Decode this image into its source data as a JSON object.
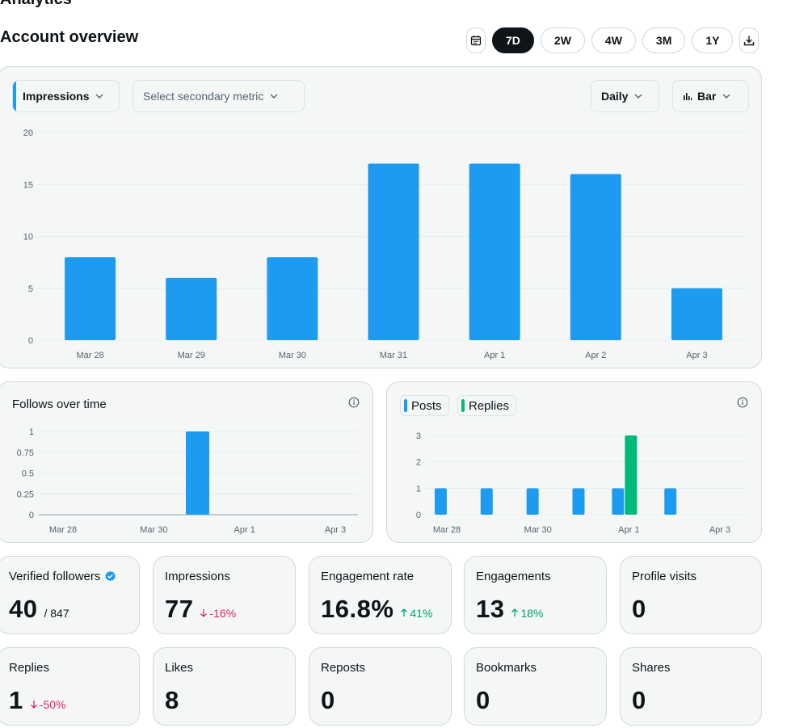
{
  "page": {
    "heading": "Analytics",
    "title": "Account overview"
  },
  "ranges": [
    {
      "label": "7D",
      "active": true
    },
    {
      "label": "2W",
      "active": false
    },
    {
      "label": "4W",
      "active": false
    },
    {
      "label": "3M",
      "active": false
    },
    {
      "label": "1Y",
      "active": false
    }
  ],
  "icons": {
    "calendar": "calendar-icon",
    "download": "download-icon",
    "chevron": "chevron-down-icon",
    "bar": "bar-chart-icon",
    "info": "info-icon",
    "verified": "verified-badge-icon"
  },
  "colors": {
    "blue": "#1d9bf0",
    "green": "#00ba7c",
    "down": "#e0245e",
    "up": "#00a36c"
  },
  "controls": {
    "primary_metric": "Impressions",
    "secondary_metric_placeholder": "Select secondary metric",
    "interval": "Daily",
    "chart_type": "Bar"
  },
  "chart_data": [
    {
      "type": "bar",
      "title": "Impressions",
      "categories": [
        "Mar 28",
        "Mar 29",
        "Mar 30",
        "Mar 31",
        "Apr 1",
        "Apr 2",
        "Apr 3"
      ],
      "values": [
        8,
        6,
        8,
        17,
        17,
        16,
        5
      ],
      "ylim": [
        0,
        20
      ],
      "yticks": [
        "0",
        "5",
        "10",
        "15",
        "20"
      ],
      "grid": true
    },
    {
      "type": "bar",
      "title": "Follows over time",
      "categories": [
        "Mar 28",
        "Mar 29",
        "Mar 30",
        "Mar 31",
        "Apr 1",
        "Apr 2",
        "Apr 3"
      ],
      "xticks": [
        "Mar 28",
        "Mar 30",
        "Apr 1",
        "Apr 3"
      ],
      "values": [
        0,
        0,
        0,
        1,
        0,
        0,
        0
      ],
      "ylim": [
        0,
        1
      ],
      "yticks": [
        "0",
        "0.25",
        "0.5",
        "0.75",
        "1"
      ],
      "grid": true
    },
    {
      "type": "bar",
      "legend": [
        "Posts",
        "Replies"
      ],
      "categories": [
        "Mar 28",
        "Mar 29",
        "Mar 30",
        "Mar 31",
        "Apr 1",
        "Apr 2",
        "Apr 3"
      ],
      "xticks": [
        "Mar 28",
        "Mar 30",
        "Apr 1",
        "Apr 3"
      ],
      "series": [
        {
          "name": "Posts",
          "values": [
            1,
            1,
            1,
            1,
            1,
            1,
            0
          ]
        },
        {
          "name": "Replies",
          "values": [
            0,
            0,
            0,
            0,
            3,
            0,
            0
          ]
        }
      ],
      "ylim": [
        0,
        3
      ],
      "yticks": [
        "0",
        "1",
        "2",
        "3"
      ],
      "grid": true
    }
  ],
  "stats": [
    {
      "label": "Verified followers",
      "value": "40",
      "sub": "/ 847",
      "verified": true
    },
    {
      "label": "Impressions",
      "value": "77",
      "delta": "-16%",
      "dir": "down"
    },
    {
      "label": "Engagement rate",
      "value": "16.8%",
      "delta": "41%",
      "dir": "up"
    },
    {
      "label": "Engagements",
      "value": "13",
      "delta": "18%",
      "dir": "up"
    },
    {
      "label": "Profile visits",
      "value": "0"
    },
    {
      "label": "Replies",
      "value": "1",
      "delta": "-50%",
      "dir": "down"
    },
    {
      "label": "Likes",
      "value": "8"
    },
    {
      "label": "Reposts",
      "value": "0"
    },
    {
      "label": "Bookmarks",
      "value": "0"
    },
    {
      "label": "Shares",
      "value": "0"
    }
  ]
}
